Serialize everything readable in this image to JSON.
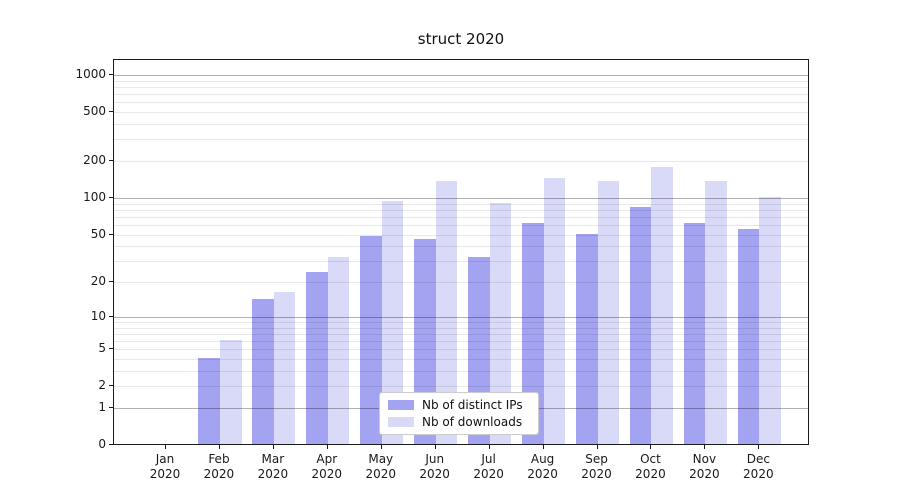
{
  "title": "struct 2020",
  "chart_data": {
    "type": "bar",
    "title": "struct 2020",
    "categories": [
      "Jan 2020",
      "Feb 2020",
      "Mar 2020",
      "Apr 2020",
      "May 2020",
      "Jun 2020",
      "Jul 2020",
      "Aug 2020",
      "Sep 2020",
      "Oct 2020",
      "Nov 2020",
      "Dec 2020"
    ],
    "series": [
      {
        "name": "Nb of distinct IPs",
        "color": "#a3a3f1",
        "values": [
          0,
          4,
          14,
          24,
          48,
          45,
          32,
          61,
          50,
          83,
          61,
          55
        ]
      },
      {
        "name": "Nb of downloads",
        "color": "#d9d9f8",
        "values": [
          0,
          6,
          16,
          32,
          93,
          135,
          89,
          142,
          135,
          175,
          135,
          100
        ]
      }
    ],
    "xlabel": "",
    "ylabel": "",
    "y_scale": "log1p",
    "y_ticks": [
      0,
      1,
      2,
      5,
      10,
      20,
      50,
      100,
      200,
      500,
      1000
    ],
    "ylim": [
      0,
      1320
    ],
    "grid": true,
    "legend_position": "lower center"
  },
  "colors": {
    "bar_dark": "#a3a3f1",
    "bar_light": "#d9d9f8",
    "grid_major": "#b3b3b3",
    "grid_minor": "#e8e8e8",
    "axis_frame": "#1a1a1a"
  }
}
